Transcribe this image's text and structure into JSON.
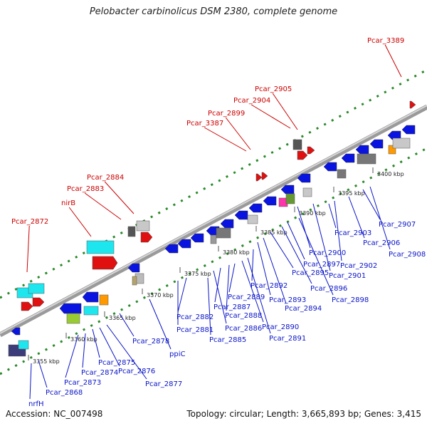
{
  "title": "Pelobacter carbinolicus DSM 2380, complete genome",
  "footer": {
    "accession": "Accession: NC_007498",
    "stats": "Topology: circular; Length: 3,665,893 bp; Genes: 3,415"
  },
  "colors": {
    "forward_gene": "#e01010",
    "reverse_gene": "#0a14e0",
    "axis": "#808080",
    "tick": "#2a8a2a",
    "label_top": "#cc0000",
    "label_bottom": "#0a14c8"
  },
  "axis_ticks": [
    "3355 kbp",
    "3360 kbp",
    "3365 kbp",
    "3370 kbp",
    "3375 kbp",
    "3380 kbp",
    "3385 kbp",
    "3390 kbp",
    "3395 kbp",
    "3400 kbp"
  ],
  "top_labels": [
    "Pcar_2872",
    "nirB",
    "Pcar_2883",
    "Pcar_2884",
    "Pcar_3387",
    "Pcar_2899",
    "Pcar_2904",
    "Pcar_2905",
    "Pcar_3389"
  ],
  "bottom_labels": [
    "nrfH",
    "Pcar_2868",
    "Pcar_2873",
    "Pcar_2874",
    "Pcar_2875",
    "Pcar_2876",
    "Pcar_2877",
    "Pcar_2878",
    "ppiC",
    "Pcar_2881",
    "Pcar_2882",
    "Pcar_2885",
    "Pcar_2886",
    "Pcar_2887",
    "Pcar_2888",
    "Pcar_2889",
    "Pcar_2890",
    "Pcar_2891",
    "Pcar_2892",
    "Pcar_2893",
    "Pcar_2894",
    "Pcar_2895",
    "Pcar_2896",
    "Pcar_2897",
    "Pcar_2898",
    "Pcar_2900",
    "Pcar_2901",
    "Pcar_2902",
    "Pcar_2903",
    "Pcar_2906",
    "Pcar_2907",
    "Pcar_2908"
  ]
}
